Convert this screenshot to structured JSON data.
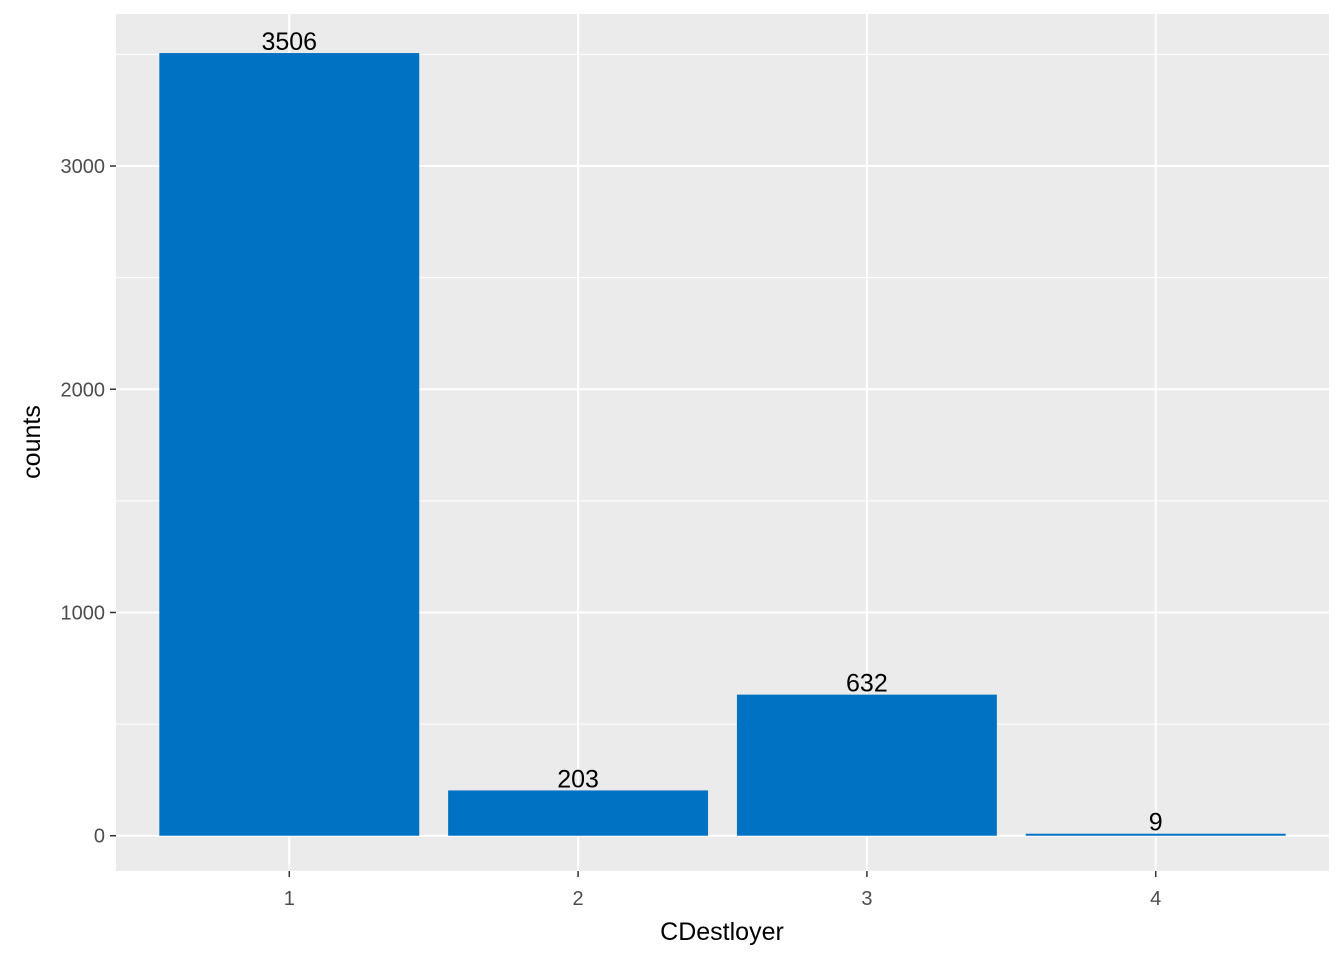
{
  "chart_data": {
    "type": "bar",
    "categories": [
      "1",
      "2",
      "3",
      "4"
    ],
    "values": [
      3506,
      203,
      632,
      9
    ],
    "data_labels": [
      "3506",
      "203",
      "632",
      "9"
    ],
    "xlabel": "CDestloyer",
    "ylabel": "counts",
    "ylim": [
      -158,
      3681
    ],
    "yticks": [
      0,
      1000,
      2000,
      3000
    ],
    "ytick_labels": [
      "0",
      "1000",
      "2000",
      "3000"
    ],
    "grid": true,
    "legend": "none",
    "colors": {
      "bar": "#0072c4",
      "panel": "#ebebeb",
      "grid": "#ffffff"
    }
  }
}
